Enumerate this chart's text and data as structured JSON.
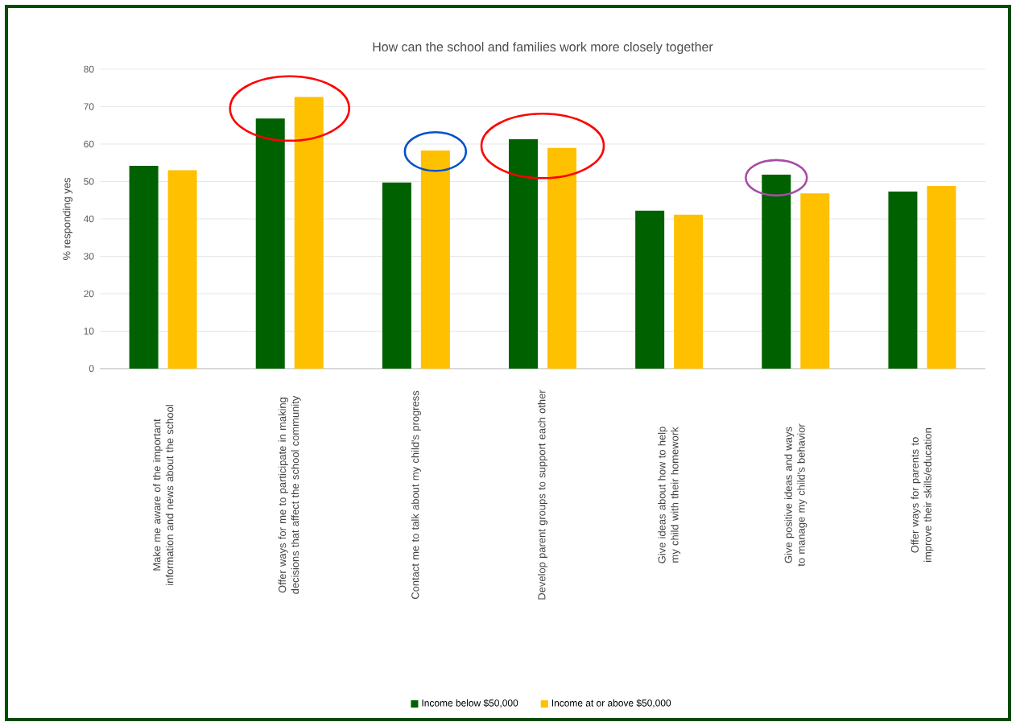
{
  "chart_data": {
    "type": "bar",
    "title": "How can the school and families work more closely together",
    "ylabel": "% responding yes",
    "categories": [
      "Make me aware of the important information and news about the school",
      "Offer ways for me to participate in making decisions that affect the school community",
      "Contact me to talk about my child's progress",
      "Develop parent groups to support each other",
      "Give ideas about how to help my child with their homework",
      "Give positive ideas and ways to manage my child's behavior",
      "Offer ways for parents to improve their skills/education"
    ],
    "series": [
      {
        "name": "Income below $50,000",
        "color": "#006100",
        "values": [
          54.2,
          66.8,
          49.7,
          61.3,
          42.2,
          51.8,
          47.3
        ]
      },
      {
        "name": "Income at or above $50,000",
        "color": "#ffc000",
        "values": [
          53.0,
          72.6,
          58.3,
          59.0,
          41.1,
          46.8,
          48.8
        ]
      }
    ],
    "ylim": [
      0,
      80
    ],
    "yticks": [
      0,
      10,
      20,
      30,
      40,
      50,
      60,
      70,
      80
    ],
    "grid": "y",
    "legend": "bottom"
  }
}
